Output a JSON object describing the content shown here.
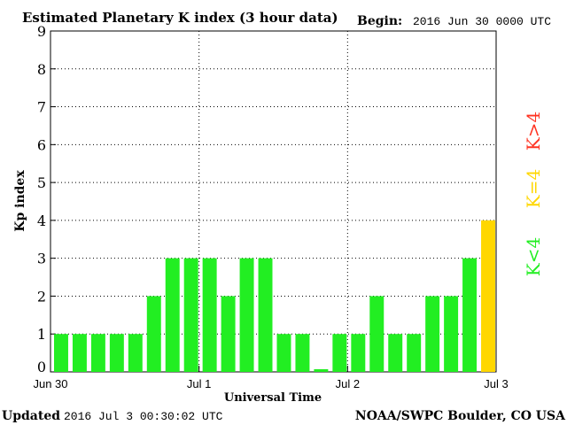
{
  "header": {
    "title": "Estimated Planetary K index (3 hour data)",
    "begin_label": "Begin:",
    "begin_value": "2016 Jun 30 0000 UTC"
  },
  "footer": {
    "updated_label": "Updated",
    "updated_value": "2016 Jul  3 00:30:02 UTC",
    "source": "NOAA/SWPC Boulder, CO USA"
  },
  "legend": {
    "low": "K<4",
    "mid": "K=4",
    "high": "K>4"
  },
  "colors": {
    "low": "#22ee22",
    "mid": "#ffd700",
    "high": "#ff3322"
  },
  "chart_data": {
    "type": "bar",
    "xlabel": "Universal Time",
    "ylabel": "Kp index",
    "ylim": [
      0,
      9
    ],
    "yticks": [
      0,
      1,
      2,
      3,
      4,
      5,
      6,
      7,
      8,
      9
    ],
    "xticks": [
      "Jun 30",
      "Jul 1",
      "Jul 2",
      "Jul 3"
    ],
    "values": [
      1,
      1,
      1,
      1,
      1,
      2,
      3,
      3,
      3,
      2,
      3,
      3,
      1,
      1,
      0.07,
      1,
      1,
      2,
      1,
      1,
      2,
      2,
      3,
      4
    ],
    "grid": true
  }
}
